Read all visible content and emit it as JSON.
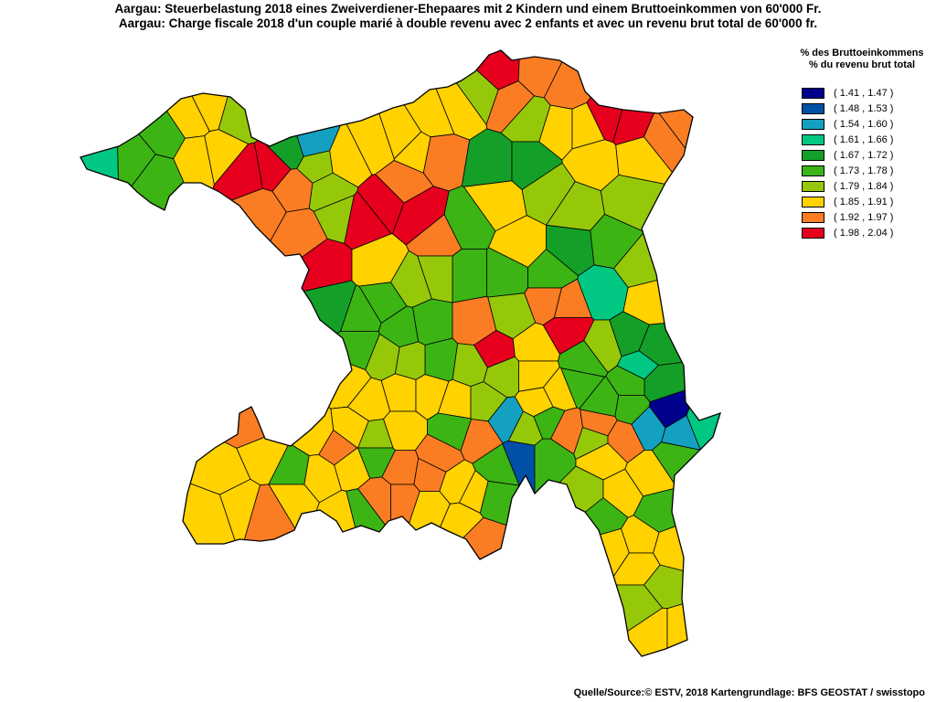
{
  "title": {
    "line1": "Aargau: Steuerbelastung 2018 eines Zweiverdiener-Ehepaares mit 2 Kindern und einem Bruttoeinkommen von 60'000 Fr.",
    "line2": "Aargau: Charge fiscale 2018 d'un couple marié à double revenu avec 2 enfants et avec un revenu brut total de 60'000 fr."
  },
  "legend": {
    "title1": "% des Bruttoeinkommens",
    "title2": "% du revenu brut total",
    "classes": [
      {
        "label": "( 1.41 , 1.47 )",
        "color": "#00008c"
      },
      {
        "label": "( 1.48 , 1.53 )",
        "color": "#0050a8"
      },
      {
        "label": "( 1.54 , 1.60 )",
        "color": "#14a0c0"
      },
      {
        "label": "( 1.61 , 1.66 )",
        "color": "#00c882"
      },
      {
        "label": "( 1.67 , 1.72 )",
        "color": "#14a028"
      },
      {
        "label": "( 1.73 , 1.78 )",
        "color": "#3cb414"
      },
      {
        "label": "( 1.79 , 1.84 )",
        "color": "#96c80a"
      },
      {
        "label": "( 1.85 , 1.91 )",
        "color": "#ffd200"
      },
      {
        "label": "( 1.92 , 1.97 )",
        "color": "#fa7d23"
      },
      {
        "label": "( 1.98 , 2.04 )",
        "color": "#e6001e"
      }
    ]
  },
  "source": "Quelle/Source:© ESTV, 2018 Kartengrundlage: BFS GEOSTAT / swisstopo"
}
